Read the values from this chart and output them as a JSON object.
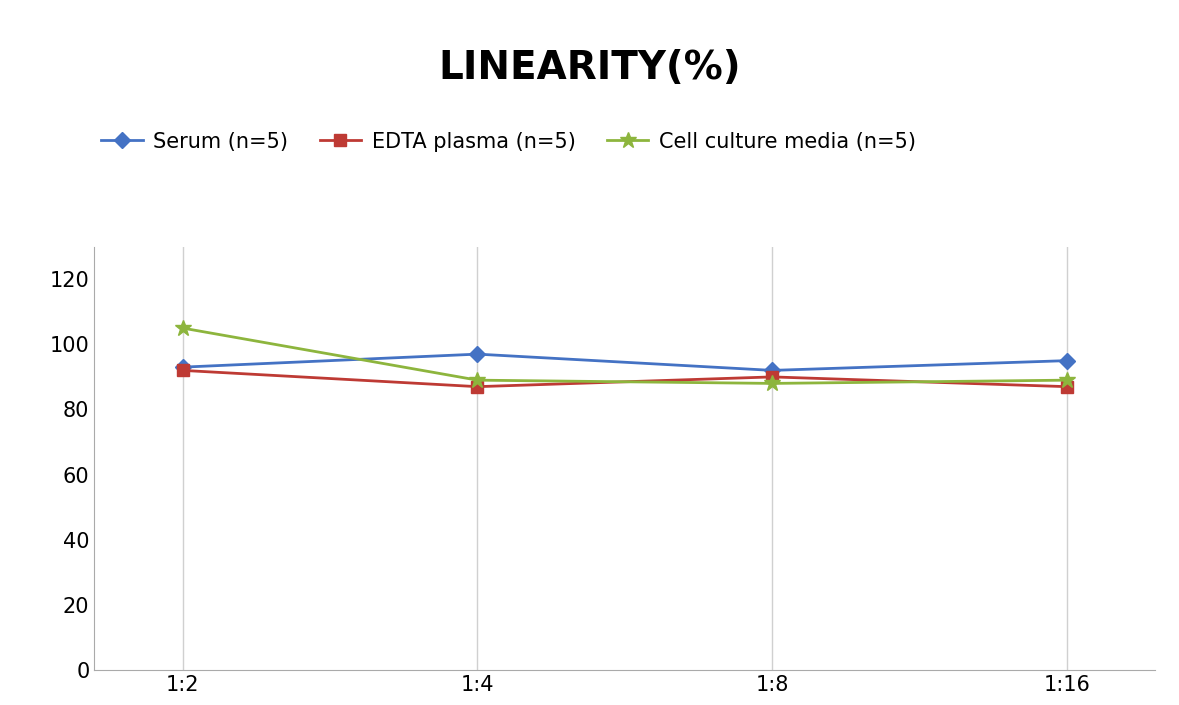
{
  "title": "LINEARITY(%)",
  "x_labels": [
    "1:2",
    "1:4",
    "1:8",
    "1:16"
  ],
  "series": [
    {
      "label": "Serum (n=5)",
      "values": [
        93,
        97,
        92,
        95
      ],
      "color": "#4472C4",
      "marker": "D",
      "markersize": 8,
      "linewidth": 2
    },
    {
      "label": "EDTA plasma (n=5)",
      "values": [
        92,
        87,
        90,
        87
      ],
      "color": "#BE3A34",
      "marker": "s",
      "markersize": 8,
      "linewidth": 2
    },
    {
      "label": "Cell culture media (n=5)",
      "values": [
        105,
        89,
        88,
        89
      ],
      "color": "#8DB53D",
      "marker": "*",
      "markersize": 12,
      "linewidth": 2
    }
  ],
  "ylim": [
    0,
    130
  ],
  "yticks": [
    0,
    20,
    40,
    60,
    80,
    100,
    120
  ],
  "grid_color": "#D0D0D0",
  "background_color": "#FFFFFF",
  "title_fontsize": 28,
  "tick_fontsize": 15,
  "legend_fontsize": 15
}
